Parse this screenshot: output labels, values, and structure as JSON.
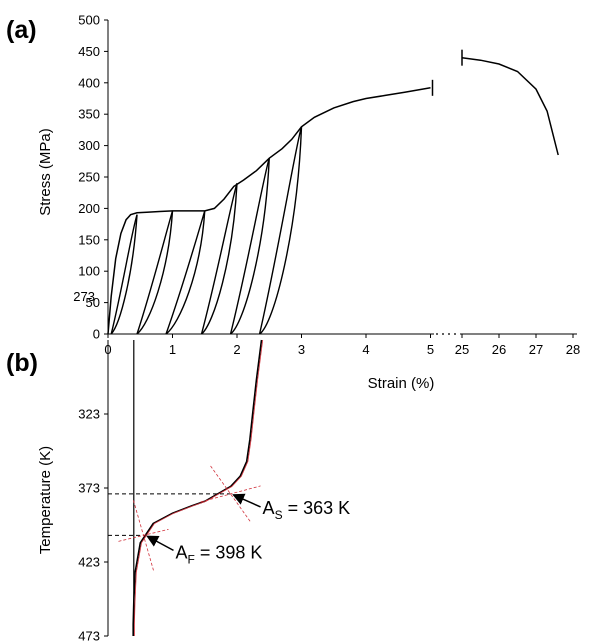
{
  "panels": {
    "a_label": "(a)",
    "b_label": "(b)"
  },
  "chart_data": [
    {
      "type": "line",
      "panel": "(a)",
      "xlabel": "Strain (%)",
      "ylabel": "Stress (MPa)",
      "xlim": [
        0,
        5
      ],
      "xlim_break": [
        25,
        28
      ],
      "ylim": [
        0,
        500
      ],
      "x_ticks": [
        "0",
        "1",
        "2",
        "3",
        "4",
        "5",
        "25",
        "26",
        "27",
        "28"
      ],
      "y_ticks": [
        "0",
        "50",
        "100",
        "150",
        "200",
        "250",
        "300",
        "350",
        "400",
        "450",
        "500"
      ],
      "extra_tick_label": "273",
      "series": [
        {
          "role": "envelope",
          "x": [
            0,
            0.05,
            0.12,
            0.2,
            0.28,
            0.35,
            0.45,
            0.6,
            0.8,
            1.0,
            1.2,
            1.5,
            1.65,
            1.8,
            1.95,
            2.1,
            2.3,
            2.5,
            2.7,
            2.85,
            3.0,
            3.2,
            3.5,
            3.8,
            4.0,
            4.3,
            4.6,
            5.0
          ],
          "y": [
            0,
            60,
            120,
            160,
            182,
            190,
            193,
            194,
            195,
            196,
            196,
            196,
            200,
            215,
            235,
            245,
            260,
            280,
            295,
            310,
            330,
            345,
            360,
            370,
            375,
            380,
            385,
            392
          ]
        },
        {
          "role": "break-segment",
          "x": [
            25.0,
            25.5,
            26.0,
            26.5,
            27.0,
            27.3,
            27.6
          ],
          "y": [
            440,
            436,
            430,
            418,
            390,
            355,
            285
          ]
        }
      ],
      "unload_cycles": [
        {
          "peak_x": 0.45,
          "peak_y": 190,
          "residual_x": 0.05
        },
        {
          "peak_x": 1.0,
          "peak_y": 196,
          "residual_x": 0.45
        },
        {
          "peak_x": 1.5,
          "peak_y": 196,
          "residual_x": 0.9
        },
        {
          "peak_x": 2.0,
          "peak_y": 240,
          "residual_x": 1.45
        },
        {
          "peak_x": 2.5,
          "peak_y": 280,
          "residual_x": 1.9
        },
        {
          "peak_x": 3.0,
          "peak_y": 330,
          "residual_x": 2.35
        }
      ]
    },
    {
      "type": "line",
      "panel": "(b)",
      "ylabel": "Temperature (K)",
      "ylim": [
        273,
        473
      ],
      "y_ticks": [
        "323",
        "373",
        "423",
        "473"
      ],
      "series": [
        {
          "role": "recovery",
          "strain": [
            2.38,
            2.3,
            2.25,
            2.2,
            2.15,
            2.05,
            1.9,
            1.7,
            1.5,
            1.3,
            1.0,
            0.7,
            0.5,
            0.42,
            0.4,
            0.39,
            0.39
          ],
          "temperature": [
            273,
            300,
            320,
            340,
            355,
            365,
            372,
            377,
            382,
            385,
            390,
            397,
            410,
            430,
            450,
            465,
            473
          ]
        }
      ],
      "annotations": [
        {
          "text_main": "A",
          "text_sub": "S",
          "text_rest": " = 363 K",
          "x": 1.9,
          "temperature": 377
        },
        {
          "text_main": "A",
          "text_sub": "F",
          "text_rest": " = 398 K",
          "x": 0.55,
          "temperature": 405
        }
      ]
    }
  ]
}
